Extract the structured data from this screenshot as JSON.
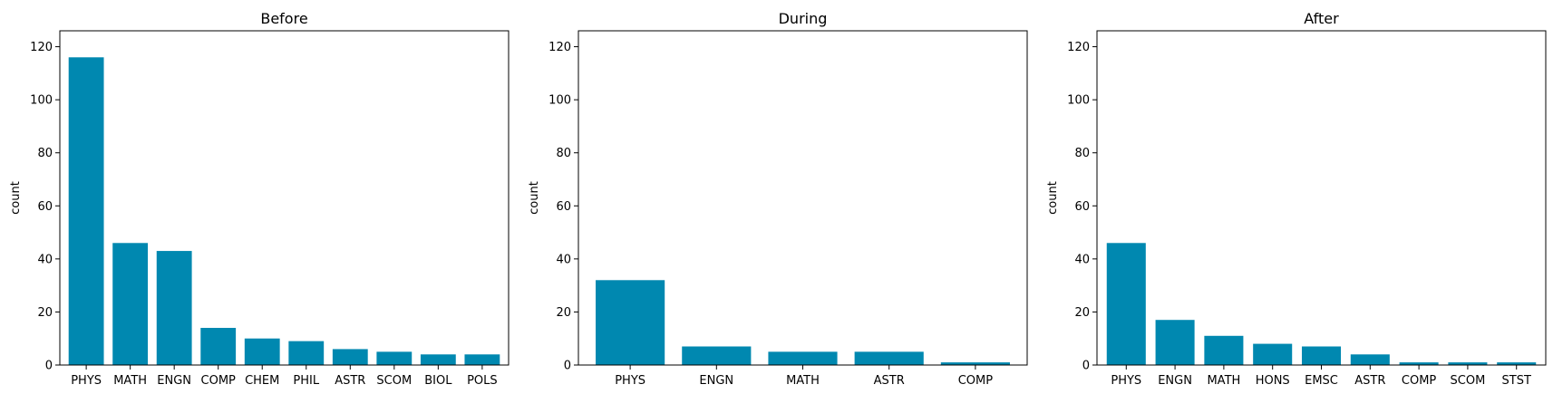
{
  "chart_data": [
    {
      "type": "bar",
      "title": "Before",
      "ylabel": "count",
      "xlabel": "",
      "ylim": [
        0,
        126
      ],
      "yticks": [
        0,
        20,
        40,
        60,
        80,
        100,
        120
      ],
      "bar_color": "#0088b0",
      "categories": [
        "PHYS",
        "MATH",
        "ENGN",
        "COMP",
        "CHEM",
        "PHIL",
        "ASTR",
        "SCOM",
        "BIOL",
        "POLS"
      ],
      "values": [
        116,
        46,
        43,
        14,
        10,
        9,
        6,
        5,
        4,
        4
      ]
    },
    {
      "type": "bar",
      "title": "During",
      "ylabel": "count",
      "xlabel": "",
      "ylim": [
        0,
        126
      ],
      "yticks": [
        0,
        20,
        40,
        60,
        80,
        100,
        120
      ],
      "bar_color": "#0088b0",
      "categories": [
        "PHYS",
        "ENGN",
        "MATH",
        "ASTR",
        "COMP"
      ],
      "values": [
        32,
        7,
        5,
        5,
        1
      ]
    },
    {
      "type": "bar",
      "title": "After",
      "ylabel": "count",
      "xlabel": "",
      "ylim": [
        0,
        126
      ],
      "yticks": [
        0,
        20,
        40,
        60,
        80,
        100,
        120
      ],
      "bar_color": "#0088b0",
      "categories": [
        "PHYS",
        "ENGN",
        "MATH",
        "HONS",
        "EMSC",
        "ASTR",
        "COMP",
        "SCOM",
        "STST"
      ],
      "values": [
        46,
        17,
        11,
        8,
        7,
        4,
        1,
        1,
        1
      ]
    }
  ]
}
